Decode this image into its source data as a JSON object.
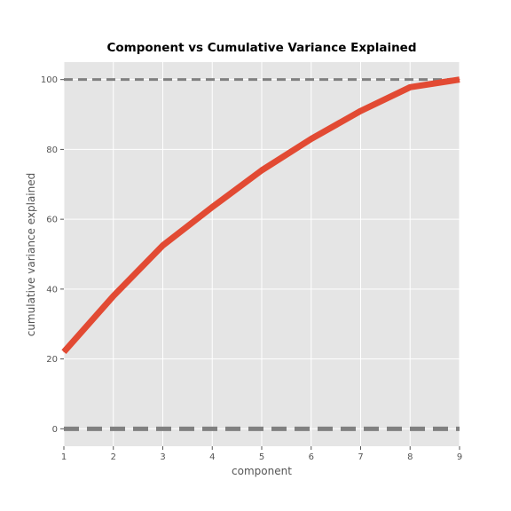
{
  "chart_data": {
    "type": "line",
    "title": "Component vs Cumulative Variance Explained",
    "xlabel": "component",
    "ylabel": "cumulative variance explained",
    "xlim": [
      1,
      9
    ],
    "ylim": [
      -5,
      105
    ],
    "xticks": [
      1,
      2,
      3,
      4,
      5,
      6,
      7,
      8,
      9
    ],
    "yticks": [
      0,
      20,
      40,
      60,
      80,
      100
    ],
    "grid": true,
    "style": "ggplot",
    "background_color": "#e5e5e5",
    "series": [
      {
        "x": [
          1,
          2,
          3,
          4,
          5,
          6,
          7,
          8,
          9
        ],
        "y": [
          22,
          38,
          52.5,
          63.5,
          74,
          83,
          91,
          97.8,
          100
        ],
        "color": "#e24a33"
      }
    ],
    "reference_lines": [
      {
        "y": 100,
        "color": "#808080",
        "style": "dashed"
      },
      {
        "y": 0,
        "color": "#808080",
        "style": "dashed"
      }
    ]
  }
}
